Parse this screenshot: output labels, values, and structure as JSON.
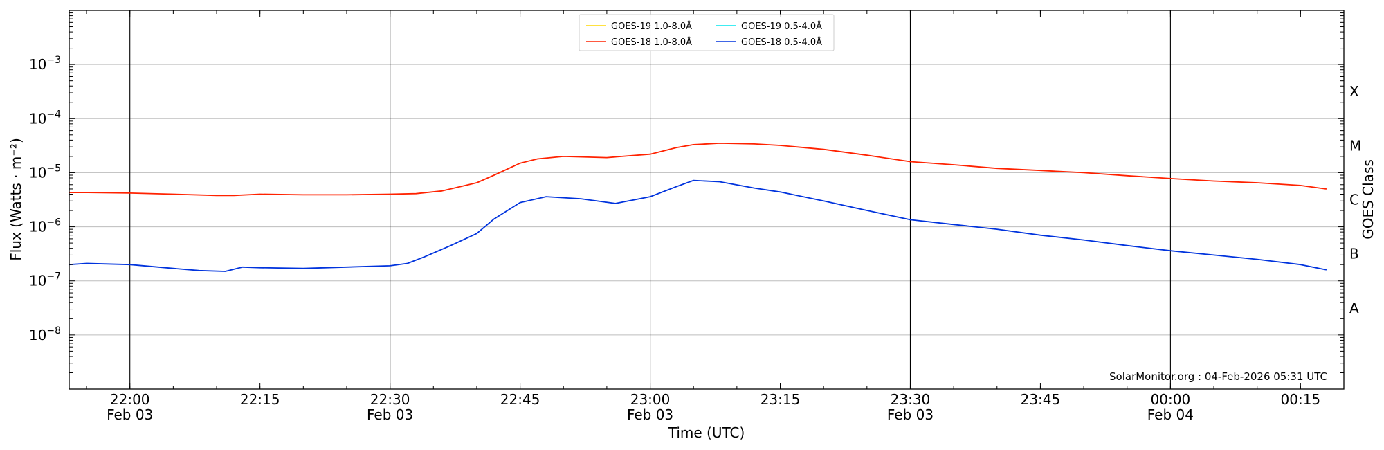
{
  "chart_data": {
    "type": "line",
    "title": "",
    "xlabel": "Time (UTC)",
    "ylabel": "Flux (Watts · m⁻²)",
    "y2label": "GOES Class",
    "yscale": "log",
    "ylim": [
      1e-09,
      0.01
    ],
    "xlim": [
      "2026-02-03T21:53",
      "2026-02-04T00:20"
    ],
    "grid": "horizontal at decades; vertical at half-hours",
    "legend_position": "top-center",
    "footer": "SolarMonitor.org : 04-Feb-2026 05:31 UTC",
    "y_ticks": [
      {
        "value": 1e-08,
        "base": "10",
        "exp": "−8"
      },
      {
        "value": 1e-07,
        "base": "10",
        "exp": "−7"
      },
      {
        "value": 1e-06,
        "base": "10",
        "exp": "−6"
      },
      {
        "value": 1e-05,
        "base": "10",
        "exp": "−5"
      },
      {
        "value": 0.0001,
        "base": "10",
        "exp": "−4"
      },
      {
        "value": 0.001,
        "base": "10",
        "exp": "−3"
      }
    ],
    "x_ticks": [
      {
        "time": "2026-02-03T22:00",
        "label": "22:00",
        "sublabel": "Feb 03"
      },
      {
        "time": "2026-02-03T22:15",
        "label": "22:15",
        "sublabel": ""
      },
      {
        "time": "2026-02-03T22:30",
        "label": "22:30",
        "sublabel": "Feb 03"
      },
      {
        "time": "2026-02-03T22:45",
        "label": "22:45",
        "sublabel": ""
      },
      {
        "time": "2026-02-03T23:00",
        "label": "23:00",
        "sublabel": "Feb 03"
      },
      {
        "time": "2026-02-03T23:15",
        "label": "23:15",
        "sublabel": ""
      },
      {
        "time": "2026-02-03T23:30",
        "label": "23:30",
        "sublabel": "Feb 03"
      },
      {
        "time": "2026-02-03T23:45",
        "label": "23:45",
        "sublabel": ""
      },
      {
        "time": "2026-02-04T00:00",
        "label": "00:00",
        "sublabel": "Feb 04"
      },
      {
        "time": "2026-02-04T00:15",
        "label": "00:15",
        "sublabel": ""
      }
    ],
    "classes": [
      {
        "label": "A",
        "value": 3.16e-08
      },
      {
        "label": "B",
        "value": 3.16e-07
      },
      {
        "label": "C",
        "value": 3.16e-06
      },
      {
        "label": "M",
        "value": 3.16e-05
      },
      {
        "label": "X",
        "value": 0.000316
      }
    ],
    "legend": [
      {
        "name": "GOES-19 1.0-8.0Å",
        "color": "#ffd700"
      },
      {
        "name": "GOES-19 0.5-4.0Å",
        "color": "#00e5ee"
      },
      {
        "name": "GOES-18 1.0-8.0Å",
        "color": "#ff2200"
      },
      {
        "name": "GOES-18 0.5-4.0Å",
        "color": "#0033dd"
      }
    ],
    "series": [
      {
        "name": "GOES-18 1.0-8.0Å",
        "color": "#ff2200",
        "x": [
          "2026-02-03T21:53",
          "2026-02-03T21:55",
          "2026-02-03T22:00",
          "2026-02-03T22:05",
          "2026-02-03T22:10",
          "2026-02-03T22:12",
          "2026-02-03T22:15",
          "2026-02-03T22:20",
          "2026-02-03T22:25",
          "2026-02-03T22:30",
          "2026-02-03T22:33",
          "2026-02-03T22:36",
          "2026-02-03T22:40",
          "2026-02-03T22:42",
          "2026-02-03T22:45",
          "2026-02-03T22:47",
          "2026-02-03T22:50",
          "2026-02-03T22:55",
          "2026-02-03T23:00",
          "2026-02-03T23:03",
          "2026-02-03T23:05",
          "2026-02-03T23:08",
          "2026-02-03T23:12",
          "2026-02-03T23:15",
          "2026-02-03T23:20",
          "2026-02-03T23:25",
          "2026-02-03T23:30",
          "2026-02-03T23:35",
          "2026-02-03T23:40",
          "2026-02-03T23:45",
          "2026-02-03T23:50",
          "2026-02-03T23:55",
          "2026-02-04T00:00",
          "2026-02-04T00:05",
          "2026-02-04T00:10",
          "2026-02-04T00:15",
          "2026-02-04T00:18"
        ],
        "values": [
          4.3e-06,
          4.3e-06,
          4.2e-06,
          4e-06,
          3.8e-06,
          3.8e-06,
          4e-06,
          3.9e-06,
          3.9e-06,
          4e-06,
          4.1e-06,
          4.6e-06,
          6.5e-06,
          9e-06,
          1.5e-05,
          1.8e-05,
          2e-05,
          1.9e-05,
          2.2e-05,
          2.9e-05,
          3.3e-05,
          3.5e-05,
          3.4e-05,
          3.2e-05,
          2.7e-05,
          2.1e-05,
          1.6e-05,
          1.4e-05,
          1.2e-05,
          1.1e-05,
          1e-05,
          8.8e-06,
          7.8e-06,
          7e-06,
          6.5e-06,
          5.8e-06,
          5e-06
        ]
      },
      {
        "name": "GOES-18 0.5-4.0Å",
        "color": "#0033dd",
        "x": [
          "2026-02-03T21:53",
          "2026-02-03T21:55",
          "2026-02-03T22:00",
          "2026-02-03T22:05",
          "2026-02-03T22:08",
          "2026-02-03T22:11",
          "2026-02-03T22:13",
          "2026-02-03T22:15",
          "2026-02-03T22:20",
          "2026-02-03T22:25",
          "2026-02-03T22:30",
          "2026-02-03T22:32",
          "2026-02-03T22:34",
          "2026-02-03T22:37",
          "2026-02-03T22:40",
          "2026-02-03T22:42",
          "2026-02-03T22:45",
          "2026-02-03T22:48",
          "2026-02-03T22:52",
          "2026-02-03T22:56",
          "2026-02-03T23:00",
          "2026-02-03T23:03",
          "2026-02-03T23:05",
          "2026-02-03T23:08",
          "2026-02-03T23:12",
          "2026-02-03T23:15",
          "2026-02-03T23:20",
          "2026-02-03T23:25",
          "2026-02-03T23:30",
          "2026-02-03T23:35",
          "2026-02-03T23:40",
          "2026-02-03T23:45",
          "2026-02-03T23:50",
          "2026-02-03T23:55",
          "2026-02-04T00:00",
          "2026-02-04T00:05",
          "2026-02-04T00:10",
          "2026-02-04T00:15",
          "2026-02-04T00:18"
        ],
        "values": [
          2e-07,
          2.1e-07,
          2e-07,
          1.7e-07,
          1.55e-07,
          1.5e-07,
          1.8e-07,
          1.75e-07,
          1.7e-07,
          1.8e-07,
          1.9e-07,
          2.1e-07,
          2.8e-07,
          4.5e-07,
          7.5e-07,
          1.4e-06,
          2.8e-06,
          3.6e-06,
          3.3e-06,
          2.7e-06,
          3.6e-06,
          5.5e-06,
          7.2e-06,
          6.8e-06,
          5.2e-06,
          4.4e-06,
          3e-06,
          2e-06,
          1.35e-06,
          1.1e-06,
          9e-07,
          7e-07,
          5.7e-07,
          4.5e-07,
          3.6e-07,
          3e-07,
          2.5e-07,
          2e-07,
          1.6e-07
        ]
      }
    ]
  }
}
